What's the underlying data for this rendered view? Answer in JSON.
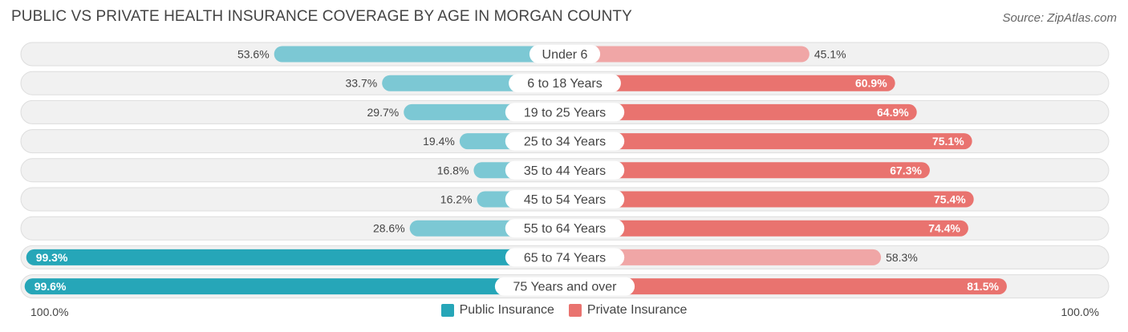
{
  "chart_data": {
    "type": "bar",
    "orientation": "horizontal-diverging",
    "title": "PUBLIC VS PRIVATE HEALTH INSURANCE COVERAGE BY AGE IN MORGAN COUNTY",
    "source": "Source: ZipAtlas.com",
    "categories": [
      "Under 6",
      "6 to 18 Years",
      "19 to 25 Years",
      "25 to 34 Years",
      "35 to 44 Years",
      "45 to 54 Years",
      "55 to 64 Years",
      "65 to 74 Years",
      "75 Years and over"
    ],
    "series": [
      {
        "name": "Public Insurance",
        "values": [
          53.6,
          33.7,
          29.7,
          19.4,
          16.8,
          16.2,
          28.6,
          99.3,
          99.6
        ],
        "labels": [
          "53.6%",
          "33.7%",
          "29.7%",
          "19.4%",
          "16.8%",
          "16.2%",
          "28.6%",
          "99.3%",
          "99.6%"
        ]
      },
      {
        "name": "Private Insurance",
        "values": [
          45.1,
          60.9,
          64.9,
          75.1,
          67.3,
          75.4,
          74.4,
          58.3,
          81.5
        ],
        "labels": [
          "45.1%",
          "60.9%",
          "64.9%",
          "75.1%",
          "67.3%",
          "75.4%",
          "74.4%",
          "58.3%",
          "81.5%"
        ]
      }
    ],
    "axis_left_label": "100.0%",
    "axis_right_label": "100.0%",
    "xlim": [
      0,
      100
    ],
    "legend_position": "bottom-center",
    "colors": {
      "public_light": "#7cc8d4",
      "public_dark": "#26a6b8",
      "private_light": "#f0a6a6",
      "private_dark": "#e9736f",
      "row_bg": "#f1f1f1",
      "row_border": "#dddddd"
    }
  }
}
